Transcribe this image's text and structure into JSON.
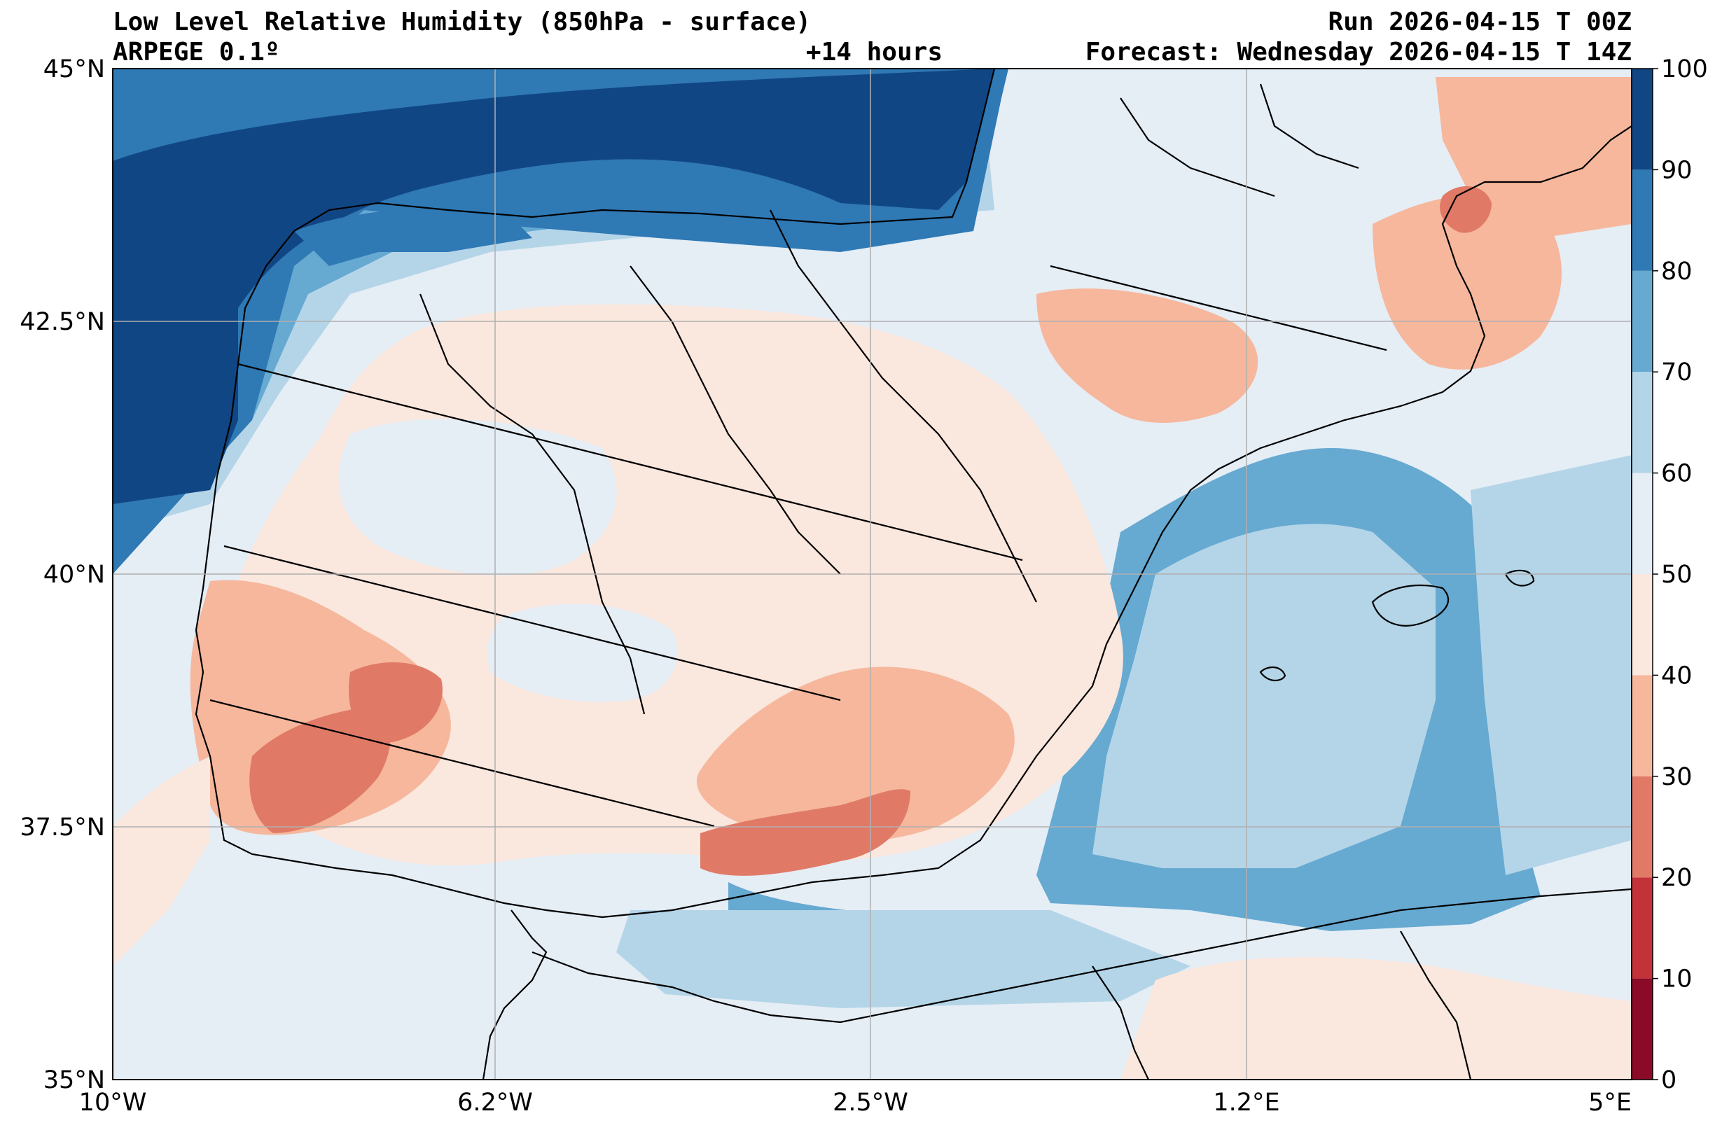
{
  "header": {
    "title_left": "Low Level Relative Humidity (850hPa - surface)",
    "subtitle_left": "ARPEGE 0.1º",
    "lead_time": "+14 hours",
    "run": "Run 2026-04-15 T 00Z",
    "forecast": "Forecast: Wednesday 2026-04-15 T 14Z"
  },
  "map": {
    "lat_labels": [
      "45°N",
      "42.5°N",
      "40°N",
      "37.5°N",
      "35°N"
    ],
    "lon_labels": [
      "10°W",
      "6.2°W",
      "2.5°W",
      "1.2°E",
      "5°E"
    ],
    "grid": true
  },
  "colorbar": {
    "ticks": [
      "0",
      "10",
      "20",
      "30",
      "40",
      "50",
      "60",
      "70",
      "80",
      "90",
      "100"
    ],
    "colors": [
      "#8a0a28",
      "#c33239",
      "#e07a66",
      "#f6b79c",
      "#fae7de",
      "#e5edf5",
      "#b4d5e8",
      "#66a9d1",
      "#2f79b5",
      "#114684"
    ]
  },
  "chart_data": {
    "type": "heatmap",
    "title": "Low Level Relative Humidity (850hPa - surface)",
    "xlim": [
      -10,
      5
    ],
    "ylim": [
      35,
      45
    ],
    "color_scale": {
      "min": 0,
      "max": 100,
      "step": 10
    }
  }
}
